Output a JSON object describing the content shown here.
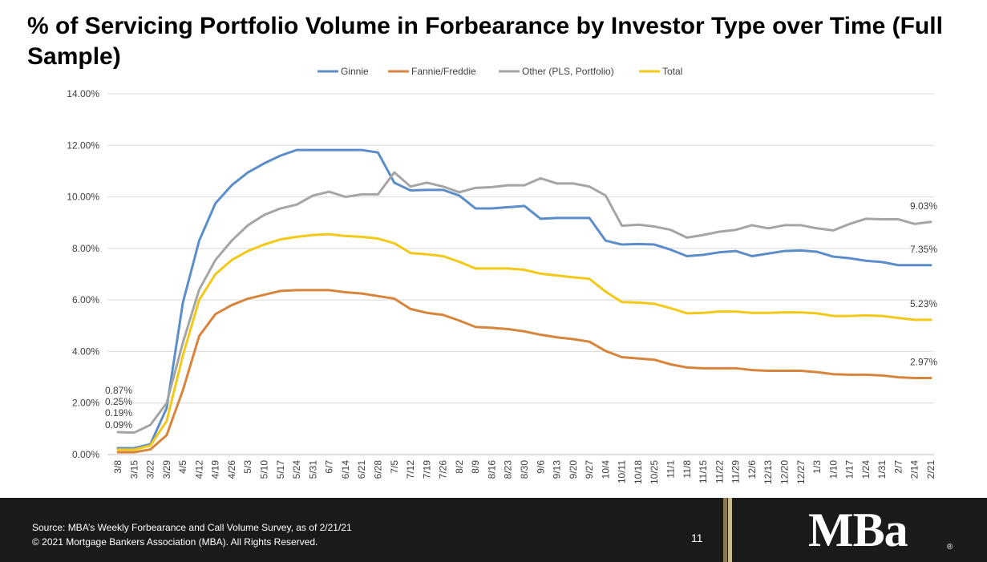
{
  "title": "% of Servicing Portfolio Volume in Forbearance by Investor Type over Time (Full Sample)",
  "footer": {
    "source": "Source: MBA’s Weekly Forbearance and Call Volume Survey, as of 2/21/21",
    "copyright": "© 2021 Mortgage Bankers Association (MBA). All Rights Reserved.",
    "page_number": "11",
    "logo": "MBa",
    "logo_mark": "®"
  },
  "chart_data": {
    "type": "line",
    "categories": [
      "3/8",
      "3/15",
      "3/22",
      "3/29",
      "4/5",
      "4/12",
      "4/19",
      "4/26",
      "5/3",
      "5/10",
      "5/17",
      "5/24",
      "5/31",
      "6/7",
      "6/14",
      "6/21",
      "6/28",
      "7/5",
      "7/12",
      "7/19",
      "7/26",
      "8/2",
      "8/9",
      "8/16",
      "8/23",
      "8/30",
      "9/6",
      "9/13",
      "9/20",
      "9/27",
      "10/4",
      "10/11",
      "10/18",
      "10/25",
      "11/1",
      "11/8",
      "11/15",
      "11/22",
      "11/29",
      "12/6",
      "12/13",
      "12/20",
      "12/27",
      "1/3",
      "1/10",
      "1/17",
      "1/24",
      "1/31",
      "2/7",
      "2/14",
      "2/21"
    ],
    "y_ticks": [
      "0.00%",
      "2.00%",
      "4.00%",
      "6.00%",
      "8.00%",
      "10.00%",
      "12.00%",
      "14.00%"
    ],
    "ylim": [
      0,
      14
    ],
    "grid": true,
    "legend_position": "top",
    "series": [
      {
        "name": "Ginnie",
        "color": "#5b8ec9",
        "values": [
          0.25,
          0.25,
          0.4,
          1.8,
          5.9,
          8.3,
          9.75,
          10.45,
          10.95,
          11.3,
          11.6,
          11.82,
          11.82,
          11.82,
          11.82,
          11.82,
          11.72,
          10.55,
          10.25,
          10.27,
          10.27,
          10.05,
          9.55,
          9.55,
          9.6,
          9.65,
          9.15,
          9.18,
          9.18,
          9.18,
          8.3,
          8.15,
          8.17,
          8.15,
          7.95,
          7.7,
          7.75,
          7.85,
          7.9,
          7.7,
          7.8,
          7.9,
          7.92,
          7.87,
          7.68,
          7.62,
          7.52,
          7.47,
          7.35,
          7.35,
          7.35
        ]
      },
      {
        "name": "Fannie/Freddie",
        "color": "#d7843d",
        "values": [
          0.09,
          0.09,
          0.2,
          0.75,
          2.5,
          4.6,
          5.45,
          5.8,
          6.05,
          6.2,
          6.35,
          6.38,
          6.38,
          6.38,
          6.3,
          6.25,
          6.15,
          6.05,
          5.65,
          5.5,
          5.42,
          5.2,
          4.95,
          4.92,
          4.87,
          4.78,
          4.65,
          4.55,
          4.48,
          4.38,
          4.02,
          3.78,
          3.73,
          3.68,
          3.5,
          3.38,
          3.35,
          3.35,
          3.35,
          3.28,
          3.25,
          3.25,
          3.25,
          3.2,
          3.12,
          3.1,
          3.1,
          3.07,
          3.0,
          2.97,
          2.97
        ]
      },
      {
        "name": "Other (PLS, Portfolio)",
        "color": "#a5a5a5",
        "values": [
          0.87,
          0.85,
          1.15,
          2.0,
          4.35,
          6.4,
          7.55,
          8.3,
          8.9,
          9.3,
          9.55,
          9.7,
          10.05,
          10.2,
          10.0,
          10.1,
          10.1,
          10.95,
          10.4,
          10.55,
          10.4,
          10.18,
          10.35,
          10.38,
          10.45,
          10.45,
          10.72,
          10.52,
          10.52,
          10.4,
          10.05,
          8.88,
          8.92,
          8.85,
          8.72,
          8.42,
          8.52,
          8.65,
          8.72,
          8.9,
          8.78,
          8.9,
          8.9,
          8.78,
          8.7,
          8.95,
          9.15,
          9.13,
          9.13,
          8.95,
          9.03
        ]
      },
      {
        "name": "Total",
        "color": "#f2c918",
        "values": [
          0.19,
          0.19,
          0.35,
          1.3,
          3.85,
          6.0,
          7.0,
          7.55,
          7.9,
          8.15,
          8.35,
          8.45,
          8.52,
          8.55,
          8.48,
          8.45,
          8.38,
          8.2,
          7.82,
          7.77,
          7.7,
          7.48,
          7.22,
          7.22,
          7.22,
          7.17,
          7.02,
          6.95,
          6.88,
          6.82,
          6.32,
          5.92,
          5.9,
          5.85,
          5.68,
          5.48,
          5.5,
          5.55,
          5.55,
          5.5,
          5.5,
          5.52,
          5.52,
          5.48,
          5.38,
          5.38,
          5.4,
          5.38,
          5.3,
          5.23,
          5.23
        ]
      }
    ],
    "start_labels": [
      "0.87%",
      "0.25%",
      "0.19%",
      "0.09%"
    ],
    "end_labels": [
      {
        "series": "Other (PLS, Portfolio)",
        "text": "9.03%"
      },
      {
        "series": "Ginnie",
        "text": "7.35%"
      },
      {
        "series": "Total",
        "text": "5.23%"
      },
      {
        "series": "Fannie/Freddie",
        "text": "2.97%"
      }
    ]
  }
}
